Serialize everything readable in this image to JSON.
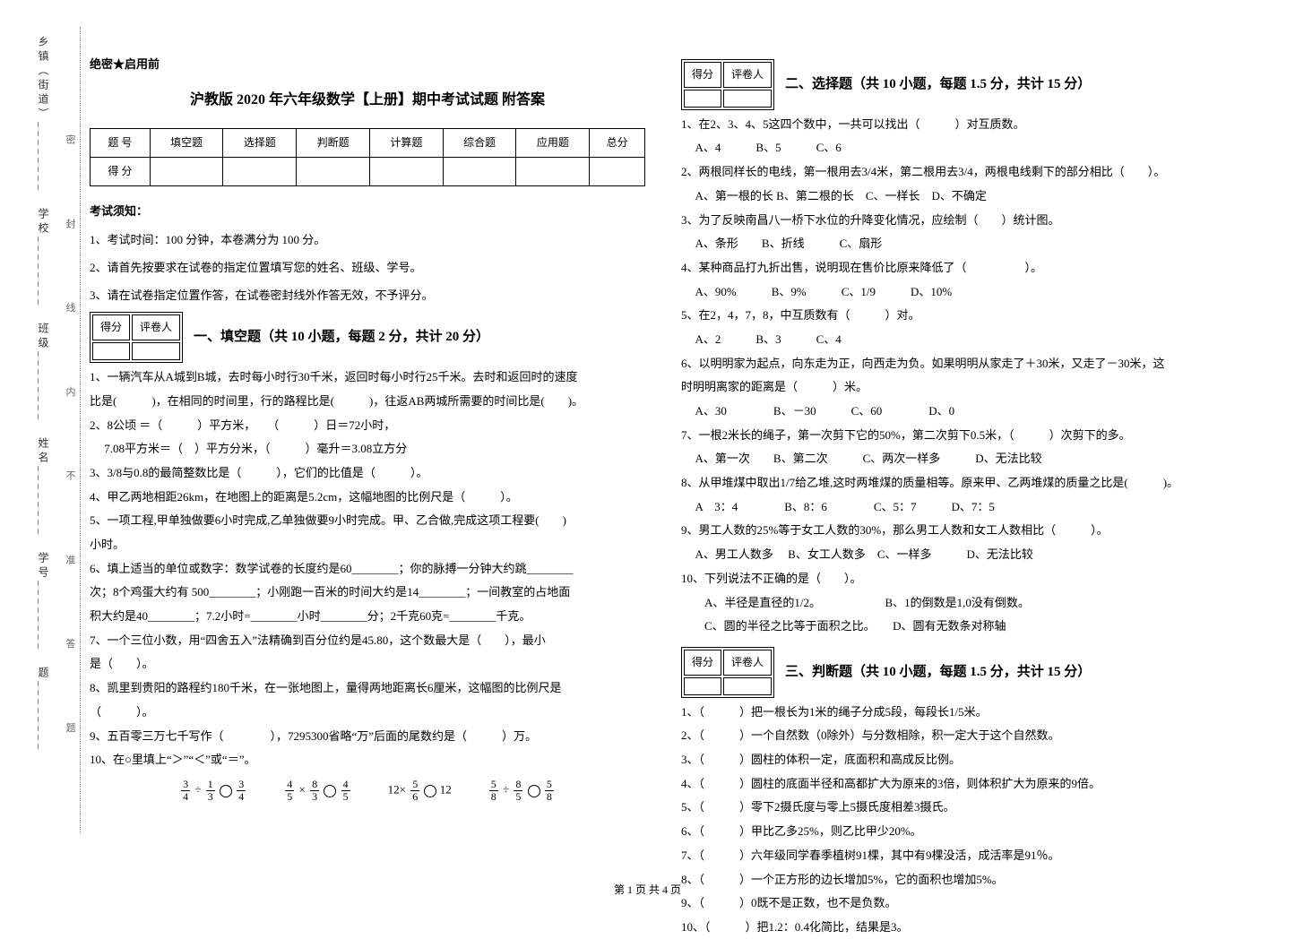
{
  "binding": {
    "fields": "乡镇（街道）________　学校________　班级________　姓名________　学号________　题________",
    "inner": "密  封  线  内  不  准  答  题",
    "dotted_color": "#888888"
  },
  "header": {
    "secret": "绝密★启用前",
    "title": "沪教版 2020 年六年级数学【上册】期中考试试题 附答案"
  },
  "score_table": {
    "row1": [
      "题  号",
      "填空题",
      "选择题",
      "判断题",
      "计算题",
      "综合题",
      "应用题",
      "总分"
    ],
    "row2": [
      "得  分",
      "",
      "",
      "",
      "",
      "",
      "",
      ""
    ]
  },
  "rules": {
    "head": "考试须知：",
    "items": [
      "1、考试时间：100 分钟，本卷满分为 100 分。",
      "2、请首先按要求在试卷的指定位置填写您的姓名、班级、学号。",
      "3、请在试卷指定位置作答，在试卷密封线外作答无效，不予评分。"
    ]
  },
  "mini_table": {
    "c1": "得分",
    "c2": "评卷人"
  },
  "sections": {
    "s1": {
      "head": "一、填空题（共 10 小题，每题 2 分，共计 20 分）",
      "q1a": "1、一辆汽车从A城到B城，去时每小时行30千米，返回时每小时行25千米。去时和返回时的速度",
      "q1b": "比是(　　　)，在相同的时间里，行的路程比是(　　　)，往返AB两城所需要的时间比是(　　)。",
      "q2a": "2、8公顷 ＝（　　　）平方米，　　（　　　）日＝72小时，",
      "q2b": "　 7.08平方米＝（　）平方分米，（　　　）毫升＝3.08立方分",
      "q3": "3、3/8与0.8的最简整数比是（　　　），它们的比值是（　　　）。",
      "q4": "4、甲乙两地相距26km，在地图上的距离是5.2cm，这幅地图的比例尺是（　　　）。",
      "q5": "5、一项工程,甲单独做要6小时完成,乙单独做要9小时完成。甲、乙合做,完成这项工程要(　　)",
      "q5b": "小时。",
      "q6a": "6、填上适当的单位或数字：数学试卷的长度约是60________；你的脉搏一分钟大约跳________",
      "q6b": "次；8个鸡蛋大约有 500________；小刚跑一百米的时间大约是14________；一间教室的占地面",
      "q6c": "积大约是40________；7.2小时=________小时________分；2千克60克=________千克。",
      "q7a": "7、一个三位小数，用“四舍五入”法精确到百分位约是45.80，这个数最大是（　　），最小",
      "q7b": "是（　　）。",
      "q8a": "8、凯里到贵阳的路程约180千米，在一张地图上，量得两地距离长6厘米，这幅图的比例尺是",
      "q8b": "（　　　）。",
      "q9": "9、五百零三万七千写作（　　　　），7295300省略“万”后面的尾数约是（　　　）万。",
      "q10": "10、在○里填上“＞”“＜”或“＝”。",
      "eq1": {
        "a_n": "3",
        "a_d": "4",
        "op1": "÷",
        "b_n": "1",
        "b_d": "3",
        "c_n": "3",
        "c_d": "4"
      },
      "eq2": {
        "a_n": "4",
        "a_d": "5",
        "op1": "×",
        "b_n": "8",
        "b_d": "3",
        "c_n": "4",
        "c_d": "5"
      },
      "eq3": {
        "a": "12",
        "op1": "×",
        "b_n": "5",
        "b_d": "6",
        "c": "12"
      },
      "eq4": {
        "a_n": "5",
        "a_d": "8",
        "op1": "÷",
        "b_n": "8",
        "b_d": "5",
        "c_n": "5",
        "c_d": "8"
      }
    },
    "s2": {
      "head": "二、选择题（共 10 小题，每题 1.5 分，共计 15 分）",
      "items": [
        "1、在2、3、4、5这四个数中，一共可以找出（　　　）对互质数。",
        "　 A、4　　　B、5　　　C、6",
        "2、两根同样长的电线，第一根用去3/4米，第二根用去3/4，两根电线剩下的部分相比（　　）。",
        "　 A、第一根的长 B、第二根的长　C、一样长　D、不确定",
        "3、为了反映南昌八一桥下水位的升降变化情况，应绘制（　　）统计图。",
        "　 A、条形　　B、折线　　　C、扇形",
        "4、某种商品打九折出售，说明现在售价比原来降低了（　　　　　）。",
        "　 A、90%　　　B、9%　　　C、1/9　　　D、10%",
        "5、在2，4，7，8，中互质数有（　　　）对。",
        "　 A、2　　　B、3　　　C、4",
        "6、以明明家为起点，向东走为正，向西走为负。如果明明从家走了＋30米，又走了－30米，这",
        "时明明离家的距离是（　　　）米。",
        "　 A、30　　　　B、－30　　　C、60　　　　D、0",
        "7、一根2米长的绳子，第一次剪下它的50%，第二次剪下0.5米，（　　　）次剪下的多。",
        "　 A、第一次　　B、第二次　　　C、两次一样多　　　D、无法比较",
        "8、从甲堆煤中取出1/7给乙堆,这时两堆煤的质量相等。原来甲、乙两堆煤的质量之比是(　　　)。",
        "　 A　3：4　　　　B、8：6　　　　C、5：7　　　D、7：5",
        "9、男工人数的25%等于女工人数的30%，那么男工人数和女工人数相比（　　　）。",
        "　 A、男工人数多　 B、女工人数多　C、一样多　　　D、无法比较",
        "10、下列说法不正确的是（　　）。",
        "　　A、半径是直径的1/2。　　　　　　B、1的倒数是1,0没有倒数。",
        "　　C、圆的半径之比等于面积之比。　　D、圆有无数条对称轴"
      ]
    },
    "s3": {
      "head": "三、判断题（共 10 小题，每题 1.5 分，共计 15 分）",
      "items": [
        "1、（　　　）把一根长为1米的绳子分成5段，每段长1/5米。",
        "2、（　　　）一个自然数（0除外）与分数相除，积一定大于这个自然数。",
        "3、（　　　）圆柱的体积一定，底面积和高成反比例。",
        "4、（　　　）圆柱的底面半径和高都扩大为原来的3倍，则体积扩大为原来的9倍。",
        "5、（　　　）零下2摄氏度与零上5摄氏度相差3摄氏。",
        "6、（　　　）甲比乙多25%，则乙比甲少20%。",
        "7、（　　　）六年级同学春季植树91棵，其中有9棵没活，成活率是91％。",
        "8、（　　　）一个正方形的边长增加5%，它的面积也增加5%。",
        "9、（　　　）0既不是正数，也不是负数。",
        "10、（　　　）把1.2：0.4化简比，结果是3。"
      ]
    }
  },
  "footer": "第 1 页 共 4 页",
  "colors": {
    "text": "#000000",
    "bg": "#ffffff"
  }
}
